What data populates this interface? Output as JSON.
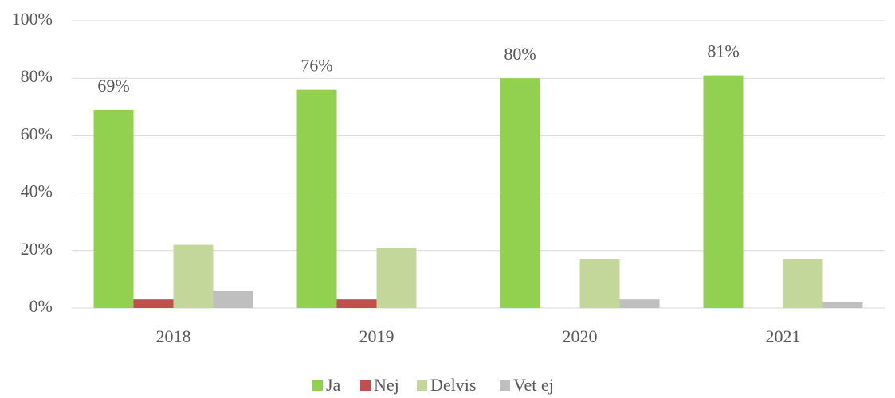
{
  "chart_data": {
    "type": "bar",
    "categories": [
      "2018",
      "2019",
      "2020",
      "2021"
    ],
    "series": [
      {
        "name": "Ja",
        "color": "#92d050",
        "values": [
          69,
          76,
          80,
          81
        ],
        "value_labels": [
          "69%",
          "76%",
          "80%",
          "81%"
        ]
      },
      {
        "name": "Nej",
        "color": "#c0504d",
        "values": [
          3,
          3,
          0,
          0
        ]
      },
      {
        "name": "Delvis",
        "color": "#c4d79b",
        "values": [
          22,
          21,
          17,
          17
        ]
      },
      {
        "name": "Vet ej",
        "color": "#bfbfbf",
        "values": [
          6,
          0,
          3,
          2
        ]
      }
    ],
    "ylim": [
      0,
      100
    ],
    "yticks": [
      {
        "value": 0,
        "label": "0%"
      },
      {
        "value": 20,
        "label": "20%"
      },
      {
        "value": 40,
        "label": "40%"
      },
      {
        "value": 60,
        "label": "60%"
      },
      {
        "value": 80,
        "label": "80%"
      },
      {
        "value": 100,
        "label": "100%"
      }
    ],
    "grid": true,
    "legend": "bottom"
  }
}
